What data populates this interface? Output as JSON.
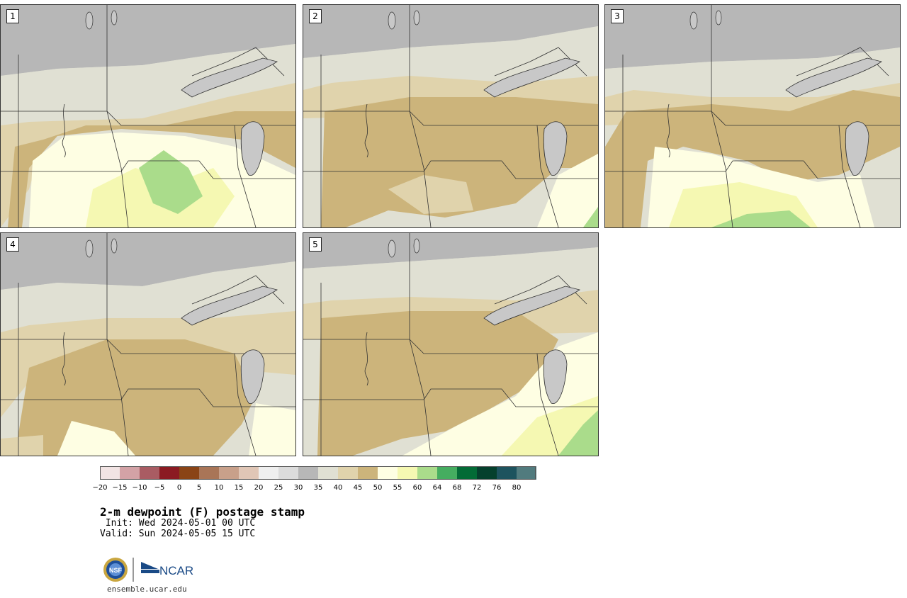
{
  "panels": [
    {
      "num": "1",
      "variant": "a"
    },
    {
      "num": "2",
      "variant": "b"
    },
    {
      "num": "3",
      "variant": "c"
    },
    {
      "num": "4",
      "variant": "d"
    },
    {
      "num": "5",
      "variant": "e"
    }
  ],
  "colorbar": {
    "colors": [
      "#f2e4e4",
      "#d3a2a6",
      "#a95c63",
      "#8b1a22",
      "#8a4416",
      "#a97557",
      "#c8a08a",
      "#e0c6b6",
      "#efefef",
      "#dcdcdc",
      "#b7b7b7",
      "#e0e0d3",
      "#e0d3ac",
      "#ccb47b",
      "#fefee3",
      "#f5f8b2",
      "#aadc8b",
      "#45ad60",
      "#036b36",
      "#05402d",
      "#1d535e",
      "#517b7e"
    ],
    "ticks": [
      "−20",
      "−15",
      "−10",
      "−5",
      "0",
      "5",
      "10",
      "15",
      "20",
      "25",
      "30",
      "35",
      "40",
      "45",
      "50",
      "55",
      "60",
      "64",
      "68",
      "72",
      "76",
      "80"
    ]
  },
  "title": "2-m dewpoint (F) postage stamp",
  "init_line": " Init: Wed 2024-05-01 00 UTC",
  "valid_line": "Valid: Sun 2024-05-05 15 UTC",
  "logo": {
    "nsf": "NSF",
    "ncar": "NCAR"
  },
  "url": "ensemble.ucar.edu"
}
